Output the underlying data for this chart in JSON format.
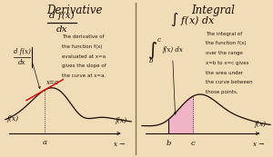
{
  "bg_color": "#f0ddb8",
  "left_title": "Derivative",
  "right_title": "Integral",
  "left_formula_num": "d f(x)",
  "left_formula_den": "dx",
  "right_formula_int": "∫",
  "right_formula_rest": "f(x) dx",
  "left_annotation_lines": [
    "The derivative of",
    "the function f(x)",
    "evaluated at x=a",
    "gives the slope of",
    "the curve at x=a."
  ],
  "right_annotation_lines": [
    "The integral of",
    "the function f(x)",
    "over the range",
    "x=b to x=c gives",
    "the area under",
    "the curve between",
    "those points."
  ],
  "curve_color": "#1a0a00",
  "tangent_color": "#cc1111",
  "fill_color": "#f0b0c8",
  "divider_color": "#8b7050",
  "axis_color": "#1a0a00",
  "text_color": "#1a0a00",
  "annotation_color": "#2a1a0a",
  "left_panel_bg": "#f0ddb8",
  "right_panel_bg": "#f0ddb8"
}
